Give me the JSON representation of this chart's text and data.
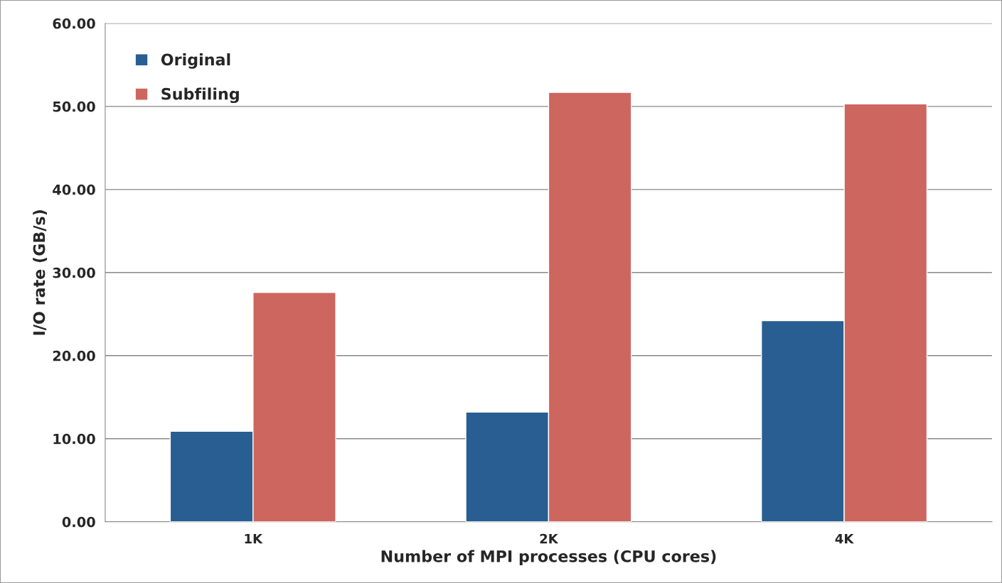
{
  "chart_data": {
    "type": "bar",
    "xlabel": "Number of MPI processes (CPU cores)",
    "ylabel": "I/O rate (GB/s)",
    "categories": [
      "1K",
      "2K",
      "4K"
    ],
    "series": [
      {
        "name": "Original",
        "color": "#285e91",
        "values": [
          10.9,
          13.2,
          24.2
        ]
      },
      {
        "name": "Subfiling",
        "color": "#cd665f",
        "values": [
          27.6,
          51.7,
          50.3
        ]
      }
    ],
    "ylim": [
      0,
      60
    ],
    "yticks": [
      {
        "value": 0,
        "label": "0.00"
      },
      {
        "value": 10,
        "label": "10.00"
      },
      {
        "value": 20,
        "label": "20.00"
      },
      {
        "value": 30,
        "label": "30.00"
      },
      {
        "value": 40,
        "label": "40.00"
      },
      {
        "value": 50,
        "label": "50.00"
      },
      {
        "value": 60,
        "label": "60.00"
      }
    ],
    "grid": "y",
    "legend": "top left"
  }
}
